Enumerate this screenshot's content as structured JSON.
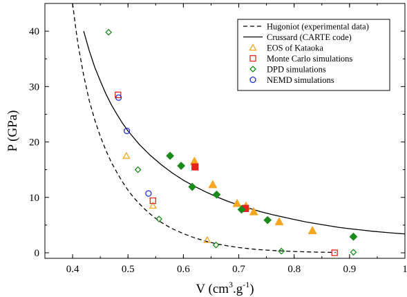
{
  "chart_data": {
    "type": "scatter",
    "title": "",
    "xlabel": "V (cm3.g-1)",
    "xlabel_parts": {
      "base": "V (cm",
      "sup1": "3",
      "mid": ".g",
      "sup2": "-1",
      "end": ")"
    },
    "ylabel": "P (GPa)",
    "xlim": [
      0.35,
      1.0
    ],
    "ylim": [
      -1,
      45
    ],
    "xticks": [
      0.4,
      0.5,
      0.6,
      0.7,
      0.8,
      0.9,
      1.0
    ],
    "xtick_labels": [
      "0.4",
      "0.5",
      "0.6",
      "0.7",
      "0.8",
      "0.9",
      "1"
    ],
    "yticks": [
      0,
      10,
      20,
      30,
      40
    ],
    "ytick_labels": [
      "0",
      "10",
      "20",
      "30",
      "40"
    ],
    "grid": false,
    "legend_position": "top-right",
    "lines": [
      {
        "name": "Hugoniot (experimental data)",
        "style": "dashed",
        "color": "#000000",
        "x": [
          0.4,
          0.405,
          0.41,
          0.42,
          0.43,
          0.44,
          0.45,
          0.46,
          0.47,
          0.48,
          0.49,
          0.5,
          0.51,
          0.52,
          0.53,
          0.54,
          0.55,
          0.56,
          0.57,
          0.58,
          0.6,
          0.62,
          0.64,
          0.66,
          0.68,
          0.7,
          0.72,
          0.74,
          0.76,
          0.78,
          0.8,
          0.82,
          0.84,
          0.86,
          0.875
        ],
        "y": [
          45.0,
          41.0,
          37.5,
          32.0,
          27.5,
          24.0,
          21.0,
          18.5,
          16.3,
          14.5,
          12.8,
          11.3,
          10.0,
          8.9,
          7.9,
          7.0,
          6.2,
          5.5,
          4.9,
          4.35,
          3.45,
          2.7,
          2.1,
          1.6,
          1.25,
          0.95,
          0.72,
          0.55,
          0.42,
          0.32,
          0.24,
          0.17,
          0.12,
          0.08,
          0.06
        ]
      },
      {
        "name": "Crussard (CARTE code)",
        "style": "solid",
        "color": "#000000",
        "x": [
          0.42,
          0.43,
          0.44,
          0.45,
          0.46,
          0.47,
          0.48,
          0.49,
          0.5,
          0.52,
          0.54,
          0.56,
          0.58,
          0.6,
          0.62,
          0.64,
          0.66,
          0.68,
          0.7,
          0.72,
          0.74,
          0.76,
          0.78,
          0.8,
          0.82,
          0.84,
          0.86,
          0.88,
          0.9,
          0.92,
          0.94,
          0.96,
          0.98,
          1.0
        ],
        "y": [
          40.0,
          36.5,
          33.5,
          31.0,
          28.7,
          26.7,
          25.0,
          23.4,
          22.0,
          19.6,
          17.6,
          15.9,
          14.4,
          13.1,
          12.0,
          11.0,
          10.1,
          9.3,
          8.6,
          8.0,
          7.4,
          6.9,
          6.45,
          6.0,
          5.6,
          5.25,
          4.92,
          4.6,
          4.35,
          4.12,
          3.9,
          3.72,
          3.55,
          3.4
        ]
      }
    ],
    "series": [
      {
        "name": "EOS of Kataoka",
        "marker": "triangle",
        "color": "#f5a623",
        "points": [
          {
            "x": 0.497,
            "y": 17.5,
            "filled": false
          },
          {
            "x": 0.545,
            "y": 8.5,
            "filled": false
          },
          {
            "x": 0.643,
            "y": 2.3,
            "filled": false
          },
          {
            "x": 0.62,
            "y": 16.5,
            "filled": true
          },
          {
            "x": 0.653,
            "y": 12.3,
            "filled": true
          },
          {
            "x": 0.697,
            "y": 8.9,
            "filled": true
          },
          {
            "x": 0.713,
            "y": 8.4,
            "filled": true
          },
          {
            "x": 0.727,
            "y": 7.4,
            "filled": true
          },
          {
            "x": 0.773,
            "y": 5.6,
            "filled": true
          },
          {
            "x": 0.833,
            "y": 4.0,
            "filled": true
          }
        ]
      },
      {
        "name": "Monte Carlo simulations",
        "marker": "square",
        "color": "#e8231e",
        "points": [
          {
            "x": 0.482,
            "y": 28.5,
            "filled": false
          },
          {
            "x": 0.545,
            "y": 9.4,
            "filled": false
          },
          {
            "x": 0.873,
            "y": 0.0,
            "filled": false
          },
          {
            "x": 0.621,
            "y": 15.5,
            "filled": true
          },
          {
            "x": 0.712,
            "y": 8.0,
            "filled": true
          }
        ]
      },
      {
        "name": "DPD simulations",
        "marker": "diamond",
        "color": "#1a8a1a",
        "points": [
          {
            "x": 0.465,
            "y": 39.8,
            "filled": false
          },
          {
            "x": 0.518,
            "y": 15.0,
            "filled": false
          },
          {
            "x": 0.556,
            "y": 6.1,
            "filled": false
          },
          {
            "x": 0.659,
            "y": 1.4,
            "filled": false
          },
          {
            "x": 0.777,
            "y": 0.3,
            "filled": false
          },
          {
            "x": 0.907,
            "y": 0.1,
            "filled": false
          },
          {
            "x": 0.576,
            "y": 17.5,
            "filled": true
          },
          {
            "x": 0.596,
            "y": 15.7,
            "filled": true
          },
          {
            "x": 0.616,
            "y": 11.9,
            "filled": true
          },
          {
            "x": 0.66,
            "y": 10.5,
            "filled": true
          },
          {
            "x": 0.705,
            "y": 7.8,
            "filled": true
          },
          {
            "x": 0.752,
            "y": 5.9,
            "filled": true
          },
          {
            "x": 0.907,
            "y": 2.9,
            "filled": true
          }
        ]
      },
      {
        "name": "NEMD simulations",
        "marker": "circle",
        "color": "#1c2fe0",
        "points": [
          {
            "x": 0.483,
            "y": 28.0,
            "filled": false
          },
          {
            "x": 0.498,
            "y": 22.0,
            "filled": false
          },
          {
            "x": 0.537,
            "y": 10.7,
            "filled": false
          }
        ]
      }
    ],
    "legend_entries": [
      "Hugoniot (experimental data)",
      "Crussard (CARTE code)",
      "EOS of Kataoka",
      "Monte Carlo simulations",
      "DPD simulations",
      "NEMD simulations"
    ]
  }
}
